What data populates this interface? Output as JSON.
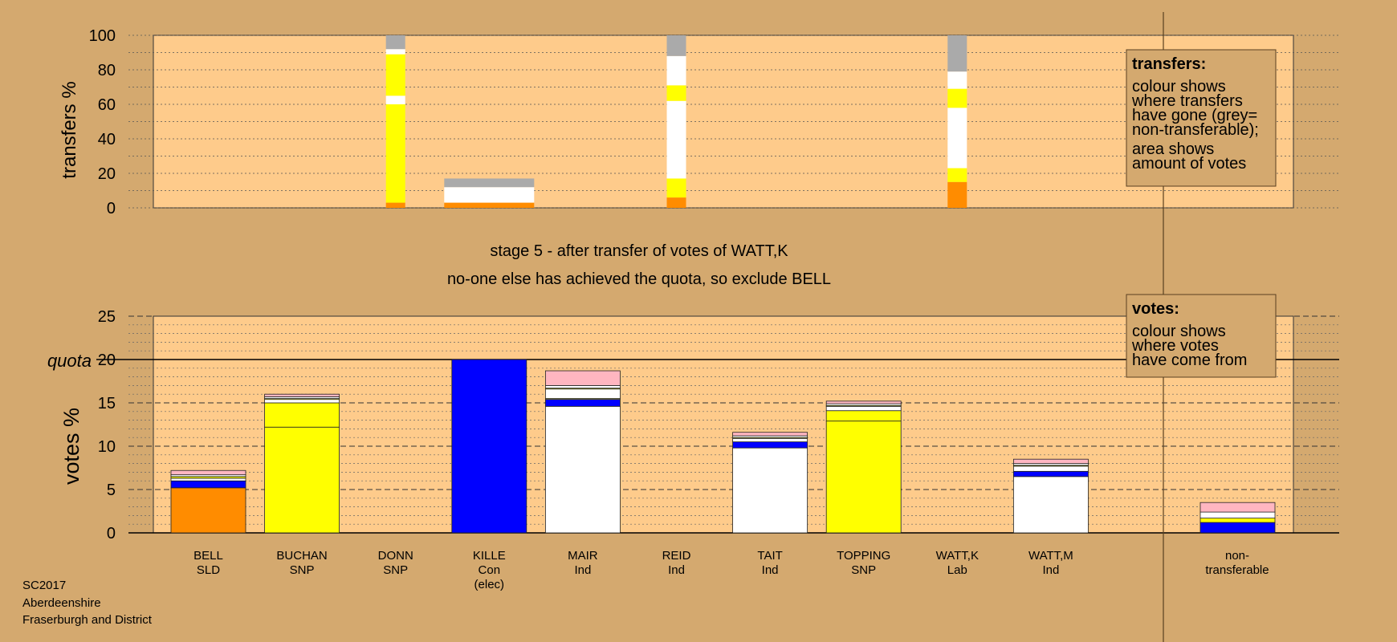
{
  "colors": {
    "background": "#d4a96f",
    "plot_bg": "#fecb8b",
    "SLD": "#ff8c00",
    "SNP": "#ffff00",
    "Con": "#0000ff",
    "Ind": "#ffffff",
    "Lab": "#ffb6c1",
    "nontransferable": "#aaaaaa"
  },
  "chart_data": [
    {
      "type": "bar",
      "stacked": true,
      "ylabel": "transfers %",
      "ylim": [
        0,
        100
      ],
      "yticks": [
        0,
        20,
        40,
        60,
        80,
        100
      ],
      "grid": true,
      "note": {
        "title": "transfers:",
        "lines": [
          "colour shows",
          "where transfers",
          "have gone (grey=",
          "non-transferable);"
        ],
        "lines2": [
          "area shows",
          "amount of votes"
        ]
      },
      "categories": [
        "BELL",
        "BUCHAN",
        "DONN",
        "KILLE",
        "MAIR",
        "REID",
        "TAIT",
        "TOPPING",
        "WATT,K",
        "WATT,M"
      ],
      "columns": [
        {
          "category": "DONN",
          "segments": [
            {
              "party": "SLD",
              "value": 3
            },
            {
              "party": "SNP",
              "value": 57
            },
            {
              "party": "Ind",
              "value": 5
            },
            {
              "party": "SNP",
              "value": 24
            },
            {
              "party": "Ind",
              "value": 3
            },
            {
              "party": "nontransferable",
              "value": 8
            }
          ]
        },
        {
          "category": "KILLE",
          "segments": [
            {
              "party": "SLD",
              "value": 3
            },
            {
              "party": "Ind",
              "value": 9
            },
            {
              "party": "nontransferable",
              "value": 5
            }
          ]
        },
        {
          "category": "REID",
          "segments": [
            {
              "party": "SLD",
              "value": 6
            },
            {
              "party": "SNP",
              "value": 11
            },
            {
              "party": "Ind",
              "value": 45
            },
            {
              "party": "SNP",
              "value": 9
            },
            {
              "party": "Ind",
              "value": 17
            },
            {
              "party": "nontransferable",
              "value": 12
            }
          ]
        },
        {
          "category": "WATT,K",
          "segments": [
            {
              "party": "SLD",
              "value": 15
            },
            {
              "party": "SNP",
              "value": 8
            },
            {
              "party": "Ind",
              "value": 35
            },
            {
              "party": "SNP",
              "value": 11
            },
            {
              "party": "Ind",
              "value": 10
            },
            {
              "party": "nontransferable",
              "value": 21
            }
          ]
        }
      ]
    },
    {
      "type": "bar",
      "stacked": true,
      "ylabel": "votes %",
      "ylim": [
        0,
        25
      ],
      "yticks": [
        0,
        5,
        10,
        15,
        20,
        25
      ],
      "grid": true,
      "quota": 20,
      "quota_label": "quota",
      "note": {
        "title": "votes:",
        "lines": [
          "colour shows",
          "where votes",
          "have come from"
        ]
      },
      "labels": [
        {
          "name": "BELL",
          "party": "SLD",
          "extra": ""
        },
        {
          "name": "BUCHAN",
          "party": "SNP",
          "extra": ""
        },
        {
          "name": "DONN",
          "party": "SNP",
          "extra": ""
        },
        {
          "name": "KILLE",
          "party": "Con",
          "extra": "(elec)"
        },
        {
          "name": "MAIR",
          "party": "Ind",
          "extra": ""
        },
        {
          "name": "REID",
          "party": "Ind",
          "extra": ""
        },
        {
          "name": "TAIT",
          "party": "Ind",
          "extra": ""
        },
        {
          "name": "TOPPING",
          "party": "SNP",
          "extra": ""
        },
        {
          "name": "WATT,K",
          "party": "Lab",
          "extra": ""
        },
        {
          "name": "WATT,M",
          "party": "Ind",
          "extra": ""
        }
      ],
      "nontransferable_label": [
        "non-",
        "transferable"
      ],
      "bars": [
        {
          "category": "BELL",
          "segments": [
            {
              "party": "SLD",
              "value": 5.2
            },
            {
              "party": "Con",
              "value": 0.8
            },
            {
              "party": "Ind",
              "value": 0.3
            },
            {
              "party": "SNP",
              "value": 0.2
            },
            {
              "party": "Ind",
              "value": 0.2
            },
            {
              "party": "Lab",
              "value": 0.5
            }
          ]
        },
        {
          "category": "BUCHAN",
          "segments": [
            {
              "party": "SNP",
              "value": 12.2
            },
            {
              "party": "SNP",
              "value": 2.8
            },
            {
              "party": "Ind",
              "value": 0.4
            },
            {
              "party": "SNP",
              "value": 0.1
            },
            {
              "party": "Ind",
              "value": 0.2
            },
            {
              "party": "Lab",
              "value": 0.3
            }
          ]
        },
        {
          "category": "DONN",
          "segments": []
        },
        {
          "category": "KILLE",
          "segments": [
            {
              "party": "Con",
              "value": 20.0
            }
          ]
        },
        {
          "category": "MAIR",
          "segments": [
            {
              "party": "Ind",
              "value": 14.6
            },
            {
              "party": "Con",
              "value": 0.8
            },
            {
              "party": "SNP",
              "value": 0.1
            },
            {
              "party": "Ind",
              "value": 1.1
            },
            {
              "party": "SNP",
              "value": 0.1
            },
            {
              "party": "Ind",
              "value": 0.3
            },
            {
              "party": "Lab",
              "value": 1.7
            }
          ]
        },
        {
          "category": "REID",
          "segments": []
        },
        {
          "category": "TAIT",
          "segments": [
            {
              "party": "Ind",
              "value": 9.8
            },
            {
              "party": "Con",
              "value": 0.7
            },
            {
              "party": "Ind",
              "value": 0.4
            },
            {
              "party": "SNP",
              "value": 0.1
            },
            {
              "party": "Ind",
              "value": 0.2
            },
            {
              "party": "Lab",
              "value": 0.4
            }
          ]
        },
        {
          "category": "TOPPING",
          "segments": [
            {
              "party": "SNP",
              "value": 12.9
            },
            {
              "party": "SNP",
              "value": 1.2
            },
            {
              "party": "Ind",
              "value": 0.5
            },
            {
              "party": "SNP",
              "value": 0.1
            },
            {
              "party": "Ind",
              "value": 0.2
            },
            {
              "party": "Lab",
              "value": 0.3
            }
          ]
        },
        {
          "category": "WATT,K",
          "segments": []
        },
        {
          "category": "WATT,M",
          "segments": [
            {
              "party": "Ind",
              "value": 6.5
            },
            {
              "party": "Con",
              "value": 0.6
            },
            {
              "party": "Ind",
              "value": 0.6
            },
            {
              "party": "SNP",
              "value": 0.1
            },
            {
              "party": "Ind",
              "value": 0.2
            },
            {
              "party": "Lab",
              "value": 0.5
            }
          ]
        },
        {
          "category": "non-transferable",
          "segments": [
            {
              "party": "Con",
              "value": 1.2
            },
            {
              "party": "SNP",
              "value": 0.5
            },
            {
              "party": "Ind",
              "value": 0.7
            },
            {
              "party": "Lab",
              "value": 1.1
            }
          ]
        }
      ]
    }
  ],
  "stage": {
    "line1": "stage 5 - after transfer of votes of WATT,K",
    "line2": "no-one else has achieved the quota, so exclude BELL"
  },
  "footer": [
    "SC2017",
    "Aberdeenshire",
    "Fraserburgh and District"
  ]
}
